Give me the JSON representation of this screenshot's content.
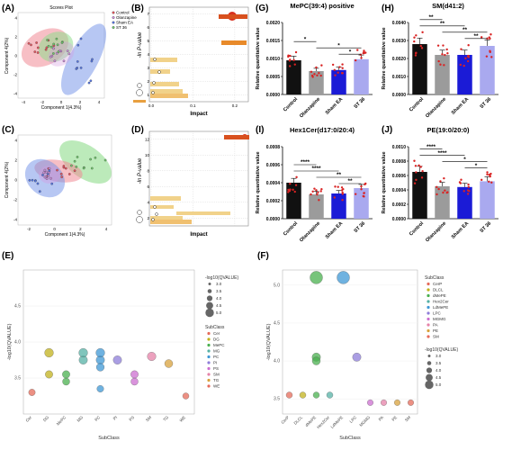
{
  "panels": {
    "A": {
      "label": "(A)",
      "title": "Scores Plot",
      "xlabel": "Component 1(4.3%)",
      "ylabel": "Component 4(2%)",
      "xticks": [
        "-4",
        "-2",
        "0",
        "2",
        "4"
      ],
      "yticks": [
        "-4",
        "-2",
        "0",
        "2",
        "4"
      ],
      "legend": [
        "Control",
        "Olanzapine",
        "Sham EA",
        "ST 36"
      ]
    },
    "B": {
      "label": "(B)",
      "xlabel": "Impact",
      "ylabel": "-ln P-value",
      "xticks": [
        "0.0",
        "0.1",
        "0.2"
      ],
      "yticks": [
        "1",
        "2",
        "3",
        "4",
        "5",
        "6",
        "7"
      ]
    },
    "C": {
      "label": "(C)",
      "xlabel": "Component 1(4.3%)",
      "ylabel": "Component 4(2%)",
      "xticks": [
        "-2",
        "0",
        "2",
        "4"
      ],
      "yticks": [
        "-4",
        "-2",
        "0",
        "2",
        "4"
      ]
    },
    "D": {
      "label": "(D)",
      "xlabel": "Impact",
      "ylabel": "-ln P-value",
      "yticks": [
        "2",
        "4",
        "6",
        "8",
        "10",
        "12"
      ]
    },
    "E": {
      "label": "(E)"
    },
    "F": {
      "label": "(F)"
    },
    "G": {
      "label": "(G)"
    },
    "H": {
      "label": "(H)"
    },
    "I": {
      "label": "(I)"
    },
    "J": {
      "label": "(J)"
    }
  },
  "bar_groups": [
    "Control",
    "Olanzapine",
    "Sham EA",
    "ST 36"
  ],
  "bar_colors": [
    "#111111",
    "#9b9b9b",
    "#1b1bd6",
    "#a9a9ef"
  ],
  "point_color": "#d92323",
  "scatter_colors": {
    "Control": "#e8545d",
    "Olanzapine": "#ce8fdc",
    "Sham EA": "#5577e6",
    "ST 36": "#6fc86b"
  },
  "bubble_palette": [
    "#e66b5a",
    "#c1b21c",
    "#4ab04f",
    "#55b1a5",
    "#3f98d5",
    "#8e7ed9",
    "#cc6fd0",
    "#e582a8",
    "#d8a23c"
  ],
  "chart_data": [
    {
      "panel": "G",
      "type": "bar",
      "title": "MePC(39:4) positive",
      "ylabel": "Relative quantitative value",
      "categories": [
        "Control",
        "Olanzapine",
        "Sham EA",
        "ST 36"
      ],
      "values": [
        0.00095,
        0.00065,
        0.00068,
        0.00098
      ],
      "ylim": [
        0,
        0.002
      ],
      "yticks": [
        "0.0000",
        "0.0005",
        "0.0010",
        "0.0015",
        "0.0020"
      ],
      "significance": [
        {
          "a": 0,
          "b": 1,
          "label": "*"
        },
        {
          "a": 1,
          "b": 3,
          "label": "*"
        },
        {
          "a": 2,
          "b": 3,
          "label": "*"
        }
      ]
    },
    {
      "panel": "H",
      "type": "bar",
      "title": "SM(d41:2)",
      "ylabel": "Relative quantitative value",
      "categories": [
        "Control",
        "Olanzapine",
        "Sham EA",
        "ST 36"
      ],
      "values": [
        0.0028,
        0.0022,
        0.0022,
        0.0027
      ],
      "ylim": [
        0,
        0.004
      ],
      "yticks": [
        "0.0000",
        "0.0010",
        "0.0020",
        "0.0030",
        "0.0040"
      ],
      "significance": [
        {
          "a": 0,
          "b": 1,
          "label": "**"
        },
        {
          "a": 0,
          "b": 2,
          "label": "**"
        },
        {
          "a": 1,
          "b": 3,
          "label": "**"
        },
        {
          "a": 2,
          "b": 3,
          "label": "**"
        }
      ]
    },
    {
      "panel": "I",
      "type": "bar",
      "title": "Hex1Cer(d17:0/20:4)",
      "ylabel": "Relative quantitative value",
      "categories": [
        "Control",
        "Olanzapine",
        "Sham EA",
        "ST 36"
      ],
      "values": [
        0.0004,
        0.00027,
        0.00028,
        0.00034
      ],
      "ylim": [
        0,
        0.0008
      ],
      "yticks": [
        "0.0000",
        "0.0002",
        "0.0004",
        "0.0006",
        "0.0008"
      ],
      "significance": [
        {
          "a": 0,
          "b": 1,
          "label": "****"
        },
        {
          "a": 0,
          "b": 2,
          "label": "****"
        },
        {
          "a": 1,
          "b": 3,
          "label": "**"
        },
        {
          "a": 2,
          "b": 3,
          "label": "**"
        }
      ]
    },
    {
      "panel": "J",
      "type": "bar",
      "title": "PE(19:0/20:0)",
      "ylabel": "Relative quantitative value",
      "categories": [
        "Control",
        "Olanzapine",
        "Sham EA",
        "ST 36"
      ],
      "values": [
        0.00065,
        0.00045,
        0.00044,
        0.00052
      ],
      "ylim": [
        0,
        0.001
      ],
      "yticks": [
        "0.0000",
        "0.0002",
        "0.0004",
        "0.0006",
        "0.0008",
        "0.0010"
      ],
      "significance": [
        {
          "a": 0,
          "b": 1,
          "label": "****"
        },
        {
          "a": 0,
          "b": 2,
          "label": "****"
        },
        {
          "a": 1,
          "b": 3,
          "label": "*"
        },
        {
          "a": 2,
          "b": 3,
          "label": "*"
        }
      ]
    },
    {
      "panel": "E",
      "type": "scatter",
      "subtype": "bubble",
      "xlabel": "SubClass",
      "ylabel": "-log10(QVALUE)",
      "categories": [
        "Cer",
        "DG",
        "MePC",
        "MG",
        "PC",
        "PI",
        "PS",
        "SM",
        "TG",
        "WE"
      ],
      "ylim": [
        3.0,
        5.0
      ],
      "yticks": [
        "3.5",
        "4.0",
        "4.5"
      ],
      "points": [
        {
          "x": "Cer",
          "y": 3.3
        },
        {
          "x": "DG",
          "y": 3.55
        },
        {
          "x": "DG",
          "y": 3.85
        },
        {
          "x": "MePC",
          "y": 3.55
        },
        {
          "x": "MePC",
          "y": 3.45
        },
        {
          "x": "MG",
          "y": 3.75
        },
        {
          "x": "MG",
          "y": 3.85
        },
        {
          "x": "PC",
          "y": 3.75
        },
        {
          "x": "PC",
          "y": 3.85
        },
        {
          "x": "PC",
          "y": 3.65
        },
        {
          "x": "PC",
          "y": 3.35
        },
        {
          "x": "PI",
          "y": 3.75
        },
        {
          "x": "PS",
          "y": 3.55
        },
        {
          "x": "PS",
          "y": 3.45
        },
        {
          "x": "SM",
          "y": 3.8
        },
        {
          "x": "TG",
          "y": 3.7
        },
        {
          "x": "WE",
          "y": 3.25
        }
      ],
      "size_legend": {
        "title": "-log10(QVALUE)",
        "values": [
          "3.0",
          "3.5",
          "4.0",
          "4.5",
          "5.0"
        ]
      },
      "color_legend": {
        "title": "SubClass",
        "items": [
          "Cer",
          "DG",
          "MePC",
          "MG",
          "PC",
          "PI",
          "PS",
          "SM",
          "TG",
          "WE"
        ]
      }
    },
    {
      "panel": "F",
      "type": "scatter",
      "subtype": "bubble",
      "xlabel": "SubClass",
      "ylabel": "-log10(QVALUE)",
      "categories": [
        "CerP",
        "DLCL",
        "dMePE",
        "Hex2Cer",
        "LdMePE",
        "LPC",
        "MGMG",
        "PA",
        "PE",
        "SM"
      ],
      "ylim": [
        3.3,
        5.2
      ],
      "yticks": [
        "3.5",
        "4.0",
        "4.5",
        "5.0"
      ],
      "points": [
        {
          "x": "CerP",
          "y": 3.55
        },
        {
          "x": "DLCL",
          "y": 3.55
        },
        {
          "x": "dMePE",
          "y": 5.1
        },
        {
          "x": "dMePE",
          "y": 4.05
        },
        {
          "x": "dMePE",
          "y": 4.0
        },
        {
          "x": "dMePE",
          "y": 3.55
        },
        {
          "x": "Hex2Cer",
          "y": 3.55
        },
        {
          "x": "LdMePE",
          "y": 5.1
        },
        {
          "x": "LPC",
          "y": 4.05
        },
        {
          "x": "MGMG",
          "y": 3.45
        },
        {
          "x": "PA",
          "y": 3.45
        },
        {
          "x": "PE",
          "y": 3.45
        },
        {
          "x": "SM",
          "y": 3.45
        }
      ],
      "color_legend": {
        "title": "SubClass",
        "items": [
          "CerP",
          "DLCL",
          "dMePE",
          "Hex2Cer",
          "LdMePE",
          "LPC",
          "MGMG",
          "PA",
          "PE",
          "SM"
        ]
      },
      "size_legend": {
        "title": "-log10(QVALUE)",
        "values": [
          "3.0",
          "3.5",
          "4.0",
          "4.5",
          "5.0"
        ]
      }
    }
  ]
}
